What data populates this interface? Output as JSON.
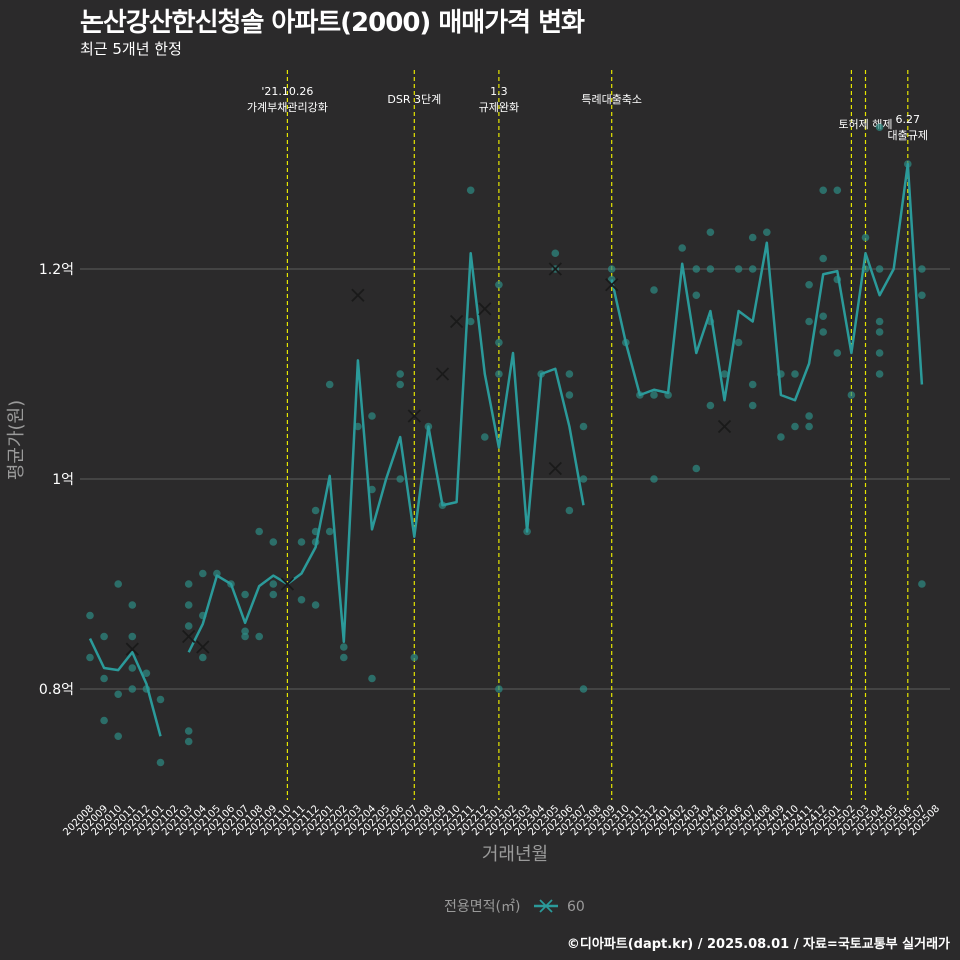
{
  "header": {
    "title": "논산강산한신청솔 아파트(2000) 매매가격 변화",
    "subtitle": "최근 5개년 한정"
  },
  "footer": {
    "caption": "©디아파트(dapt.kr) / 2025.08.01 / 자료=국토교통부 실거래가"
  },
  "colors": {
    "background": "#2b2a2b",
    "series": "#2b9a9a",
    "point": "#2e8c85",
    "event_line": "#e6e600",
    "grid": "#5e5e5e"
  },
  "chart_data": {
    "type": "line",
    "xlabel": "거래년월",
    "ylabel": "평균가(원)",
    "ylim": [
      0.7,
      1.3
    ],
    "y_ticks": [
      {
        "value": 0.8,
        "label": "0.8억"
      },
      {
        "value": 1.0,
        "label": "1억"
      },
      {
        "value": 1.2,
        "label": "1.2억"
      }
    ],
    "categories": [
      "202008",
      "202009",
      "202010",
      "202011",
      "202012",
      "202101",
      "202102",
      "202103",
      "202104",
      "202105",
      "202106",
      "202107",
      "202108",
      "202109",
      "202110",
      "202111",
      "202112",
      "202201",
      "202202",
      "202203",
      "202204",
      "202205",
      "202206",
      "202207",
      "202208",
      "202209",
      "202210",
      "202211",
      "202212",
      "202301",
      "202302",
      "202303",
      "202304",
      "202305",
      "202306",
      "202307",
      "202308",
      "202309",
      "202310",
      "202311",
      "202312",
      "202401",
      "202402",
      "202403",
      "202404",
      "202405",
      "202406",
      "202407",
      "202408",
      "202409",
      "202410",
      "202411",
      "202412",
      "202501",
      "202502",
      "202503",
      "202504",
      "202505",
      "202506",
      "202507",
      "202508"
    ],
    "legend": {
      "title": "전용면적(㎡)",
      "entries": [
        "60"
      ]
    },
    "series": [
      {
        "name": "60",
        "line": [
          {
            "x": "202008",
            "y": 0.848
          },
          {
            "x": "202009",
            "y": 0.82
          },
          {
            "x": "202010",
            "y": 0.818
          },
          {
            "x": "202011",
            "y": 0.835
          },
          {
            "x": "202012",
            "y": 0.805
          },
          {
            "x": "202101",
            "y": 0.755
          },
          {
            "x": "202103",
            "y": 0.835
          },
          {
            "x": "202104",
            "y": 0.862
          },
          {
            "x": "202105",
            "y": 0.908
          },
          {
            "x": "202106",
            "y": 0.9
          },
          {
            "x": "202107",
            "y": 0.863
          },
          {
            "x": "202108",
            "y": 0.898
          },
          {
            "x": "202109",
            "y": 0.908
          },
          {
            "x": "202110",
            "y": 0.9
          },
          {
            "x": "202111",
            "y": 0.91
          },
          {
            "x": "202112",
            "y": 0.935
          },
          {
            "x": "202201",
            "y": 1.003
          },
          {
            "x": "202202",
            "y": 0.845
          },
          {
            "x": "202203",
            "y": 1.113
          },
          {
            "x": "202204",
            "y": 0.952
          },
          {
            "x": "202205",
            "y": 1.0
          },
          {
            "x": "202206",
            "y": 1.04
          },
          {
            "x": "202207",
            "y": 0.945
          },
          {
            "x": "202208",
            "y": 1.05
          },
          {
            "x": "202209",
            "y": 0.975
          },
          {
            "x": "202210",
            "y": 0.978
          },
          {
            "x": "202211",
            "y": 1.215
          },
          {
            "x": "202212",
            "y": 1.1
          },
          {
            "x": "202301",
            "y": 1.03
          },
          {
            "x": "202302",
            "y": 1.12
          },
          {
            "x": "202303",
            "y": 0.95
          },
          {
            "x": "202304",
            "y": 1.1
          },
          {
            "x": "202305",
            "y": 1.105
          },
          {
            "x": "202306",
            "y": 1.05
          },
          {
            "x": "202307",
            "y": 0.975
          },
          {
            "x": "202309",
            "y": 1.19
          },
          {
            "x": "202310",
            "y": 1.13
          },
          {
            "x": "202311",
            "y": 1.08
          },
          {
            "x": "202312",
            "y": 1.085
          },
          {
            "x": "202401",
            "y": 1.082
          },
          {
            "x": "202402",
            "y": 1.205
          },
          {
            "x": "202403",
            "y": 1.12
          },
          {
            "x": "202404",
            "y": 1.16
          },
          {
            "x": "202405",
            "y": 1.075
          },
          {
            "x": "202406",
            "y": 1.16
          },
          {
            "x": "202407",
            "y": 1.15
          },
          {
            "x": "202408",
            "y": 1.225
          },
          {
            "x": "202409",
            "y": 1.08
          },
          {
            "x": "202410",
            "y": 1.075
          },
          {
            "x": "202411",
            "y": 1.11
          },
          {
            "x": "202412",
            "y": 1.195
          },
          {
            "x": "202501",
            "y": 1.198
          },
          {
            "x": "202502",
            "y": 1.12
          },
          {
            "x": "202503",
            "y": 1.215
          },
          {
            "x": "202504",
            "y": 1.175
          },
          {
            "x": "202505",
            "y": 1.2
          },
          {
            "x": "202506",
            "y": 1.3
          },
          {
            "x": "202507",
            "y": 1.09
          }
        ],
        "points": [
          {
            "x": "202008",
            "y": 0.87
          },
          {
            "x": "202008",
            "y": 0.83
          },
          {
            "x": "202009",
            "y": 0.85
          },
          {
            "x": "202009",
            "y": 0.81
          },
          {
            "x": "202009",
            "y": 0.77
          },
          {
            "x": "202010",
            "y": 0.9
          },
          {
            "x": "202010",
            "y": 0.795
          },
          {
            "x": "202010",
            "y": 0.755
          },
          {
            "x": "202011",
            "y": 0.88
          },
          {
            "x": "202011",
            "y": 0.85
          },
          {
            "x": "202011",
            "y": 0.82
          },
          {
            "x": "202011",
            "y": 0.8
          },
          {
            "x": "202012",
            "y": 0.815
          },
          {
            "x": "202012",
            "y": 0.8
          },
          {
            "x": "202101",
            "y": 0.79
          },
          {
            "x": "202101",
            "y": 0.73
          },
          {
            "x": "202103",
            "y": 0.9
          },
          {
            "x": "202103",
            "y": 0.88
          },
          {
            "x": "202103",
            "y": 0.86
          },
          {
            "x": "202103",
            "y": 0.76
          },
          {
            "x": "202103",
            "y": 0.75
          },
          {
            "x": "202104",
            "y": 0.91
          },
          {
            "x": "202104",
            "y": 0.87
          },
          {
            "x": "202104",
            "y": 0.83
          },
          {
            "x": "202105",
            "y": 0.91
          },
          {
            "x": "202106",
            "y": 0.9
          },
          {
            "x": "202107",
            "y": 0.89
          },
          {
            "x": "202107",
            "y": 0.855
          },
          {
            "x": "202107",
            "y": 0.85
          },
          {
            "x": "202108",
            "y": 0.95
          },
          {
            "x": "202108",
            "y": 0.85
          },
          {
            "x": "202109",
            "y": 0.94
          },
          {
            "x": "202109",
            "y": 0.9
          },
          {
            "x": "202109",
            "y": 0.89
          },
          {
            "x": "202111",
            "y": 0.94
          },
          {
            "x": "202111",
            "y": 0.885
          },
          {
            "x": "202112",
            "y": 0.97
          },
          {
            "x": "202112",
            "y": 0.95
          },
          {
            "x": "202112",
            "y": 0.94
          },
          {
            "x": "202112",
            "y": 0.88
          },
          {
            "x": "202201",
            "y": 1.09
          },
          {
            "x": "202201",
            "y": 0.95
          },
          {
            "x": "202202",
            "y": 0.84
          },
          {
            "x": "202202",
            "y": 0.83
          },
          {
            "x": "202203",
            "y": 1.05
          },
          {
            "x": "202204",
            "y": 1.06
          },
          {
            "x": "202204",
            "y": 0.99
          },
          {
            "x": "202204",
            "y": 0.81
          },
          {
            "x": "202206",
            "y": 1.1
          },
          {
            "x": "202206",
            "y": 1.09
          },
          {
            "x": "202206",
            "y": 1.0
          },
          {
            "x": "202207",
            "y": 0.83
          },
          {
            "x": "202208",
            "y": 1.05
          },
          {
            "x": "202209",
            "y": 0.975
          },
          {
            "x": "202211",
            "y": 1.275
          },
          {
            "x": "202211",
            "y": 1.15
          },
          {
            "x": "202212",
            "y": 1.04
          },
          {
            "x": "202301",
            "y": 1.185
          },
          {
            "x": "202301",
            "y": 1.13
          },
          {
            "x": "202301",
            "y": 1.1
          },
          {
            "x": "202301",
            "y": 0.8
          },
          {
            "x": "202303",
            "y": 0.95
          },
          {
            "x": "202304",
            "y": 1.1
          },
          {
            "x": "202305",
            "y": 1.215
          },
          {
            "x": "202305",
            "y": 1.2
          },
          {
            "x": "202306",
            "y": 1.1
          },
          {
            "x": "202306",
            "y": 1.08
          },
          {
            "x": "202306",
            "y": 0.97
          },
          {
            "x": "202307",
            "y": 1.05
          },
          {
            "x": "202307",
            "y": 1.0
          },
          {
            "x": "202307",
            "y": 0.8
          },
          {
            "x": "202309",
            "y": 1.2
          },
          {
            "x": "202309",
            "y": 1.19
          },
          {
            "x": "202310",
            "y": 1.13
          },
          {
            "x": "202311",
            "y": 1.08
          },
          {
            "x": "202312",
            "y": 1.18
          },
          {
            "x": "202312",
            "y": 1.08
          },
          {
            "x": "202312",
            "y": 1.0
          },
          {
            "x": "202401",
            "y": 1.08
          },
          {
            "x": "202402",
            "y": 1.22
          },
          {
            "x": "202403",
            "y": 1.2
          },
          {
            "x": "202403",
            "y": 1.175
          },
          {
            "x": "202403",
            "y": 1.01
          },
          {
            "x": "202404",
            "y": 1.235
          },
          {
            "x": "202404",
            "y": 1.2
          },
          {
            "x": "202404",
            "y": 1.15
          },
          {
            "x": "202404",
            "y": 1.07
          },
          {
            "x": "202405",
            "y": 1.1
          },
          {
            "x": "202406",
            "y": 1.2
          },
          {
            "x": "202406",
            "y": 1.13
          },
          {
            "x": "202407",
            "y": 1.23
          },
          {
            "x": "202407",
            "y": 1.2
          },
          {
            "x": "202407",
            "y": 1.09
          },
          {
            "x": "202407",
            "y": 1.07
          },
          {
            "x": "202408",
            "y": 1.235
          },
          {
            "x": "202409",
            "y": 1.1
          },
          {
            "x": "202409",
            "y": 1.04
          },
          {
            "x": "202410",
            "y": 1.1
          },
          {
            "x": "202410",
            "y": 1.05
          },
          {
            "x": "202411",
            "y": 1.185
          },
          {
            "x": "202411",
            "y": 1.15
          },
          {
            "x": "202411",
            "y": 1.06
          },
          {
            "x": "202411",
            "y": 1.05
          },
          {
            "x": "202412",
            "y": 1.275
          },
          {
            "x": "202412",
            "y": 1.21
          },
          {
            "x": "202412",
            "y": 1.155
          },
          {
            "x": "202412",
            "y": 1.14
          },
          {
            "x": "202501",
            "y": 1.275
          },
          {
            "x": "202501",
            "y": 1.19
          },
          {
            "x": "202501",
            "y": 1.12
          },
          {
            "x": "202502",
            "y": 1.08
          },
          {
            "x": "202503",
            "y": 1.23
          },
          {
            "x": "202503",
            "y": 1.2
          },
          {
            "x": "202504",
            "y": 1.335
          },
          {
            "x": "202504",
            "y": 1.2
          },
          {
            "x": "202504",
            "y": 1.15
          },
          {
            "x": "202504",
            "y": 1.14
          },
          {
            "x": "202504",
            "y": 1.12
          },
          {
            "x": "202504",
            "y": 1.1
          },
          {
            "x": "202506",
            "y": 1.3
          },
          {
            "x": "202507",
            "y": 1.2
          },
          {
            "x": "202507",
            "y": 1.175
          },
          {
            "x": "202507",
            "y": 0.9
          }
        ],
        "x_markers": [
          {
            "x": "202011",
            "y": 0.838
          },
          {
            "x": "202103",
            "y": 0.85
          },
          {
            "x": "202104",
            "y": 0.84
          },
          {
            "x": "202110",
            "y": 0.9
          },
          {
            "x": "202203",
            "y": 1.175
          },
          {
            "x": "202207",
            "y": 1.06
          },
          {
            "x": "202209",
            "y": 1.1
          },
          {
            "x": "202210",
            "y": 1.15
          },
          {
            "x": "202212",
            "y": 1.162
          },
          {
            "x": "202305",
            "y": 1.2
          },
          {
            "x": "202305",
            "y": 1.01
          },
          {
            "x": "202309",
            "y": 1.185
          },
          {
            "x": "202405",
            "y": 1.05
          }
        ]
      }
    ],
    "events": [
      {
        "x": "202110",
        "lines": [
          "'21.10.26",
          "가계부채관리강화"
        ],
        "level": 0
      },
      {
        "x": "202207",
        "lines": [
          "DSR 3단계"
        ],
        "level": 2
      },
      {
        "x": "202301",
        "lines": [
          "1.3",
          "규제완화"
        ],
        "level": 0
      },
      {
        "x": "202309",
        "lines": [
          "특례대출축소"
        ],
        "level": 2
      },
      {
        "x": "202502",
        "lines": [],
        "level": 1
      },
      {
        "x": "202503",
        "lines": [
          "토허제 해제"
        ],
        "level": 1
      },
      {
        "x": "202506",
        "lines": [
          "6.27",
          "대출규제"
        ],
        "level": 3
      }
    ]
  }
}
